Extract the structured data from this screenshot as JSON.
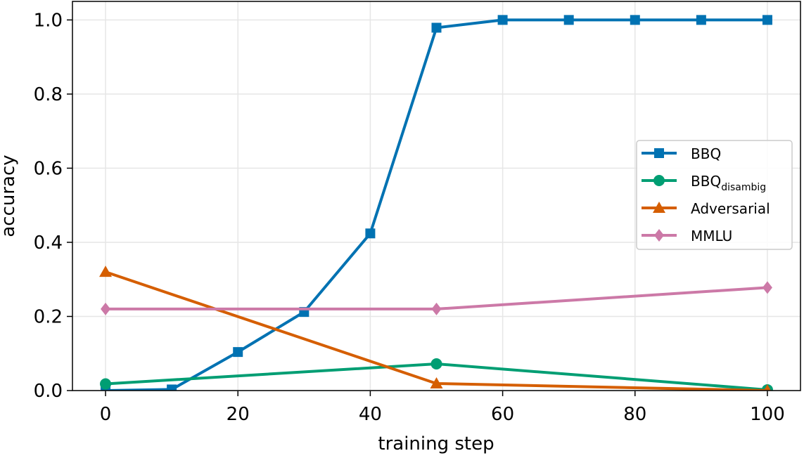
{
  "chart_data": {
    "type": "line",
    "xlabel": "training step",
    "ylabel": "accuracy",
    "xlim": [
      -5,
      105
    ],
    "ylim": [
      0,
      1.05
    ],
    "xticks": [
      0,
      20,
      40,
      60,
      80,
      100
    ],
    "yticks": [
      {
        "value": 0,
        "label": "0.0"
      },
      0.2,
      0.4,
      0.6,
      0.8,
      {
        "value": 1,
        "label": "1.0"
      }
    ],
    "grid": true,
    "legend": "center right",
    "series": [
      {
        "name": "BBQ",
        "color": "#0072b2",
        "marker": "square",
        "x": [
          0,
          10,
          20,
          30,
          40,
          50,
          60,
          70,
          80,
          90,
          100
        ],
        "values": [
          0.0,
          0.003,
          0.104,
          0.212,
          0.424,
          0.979,
          1.0,
          1.0,
          1.0,
          1.0,
          1.0
        ]
      },
      {
        "name": "BBQ",
        "subscript": "disambig",
        "color": "#009e73",
        "marker": "circle",
        "x": [
          0,
          50,
          100
        ],
        "values": [
          0.018,
          0.072,
          0.002
        ]
      },
      {
        "name": "Adversarial",
        "color": "#d55e00",
        "marker": "triangle",
        "x": [
          0,
          50,
          100
        ],
        "values": [
          0.32,
          0.019,
          0.0
        ]
      },
      {
        "name": "MMLU",
        "color": "#cc79a7",
        "marker": "diamond",
        "x": [
          0,
          50,
          100
        ],
        "values": [
          0.22,
          0.22,
          0.278
        ]
      }
    ]
  }
}
